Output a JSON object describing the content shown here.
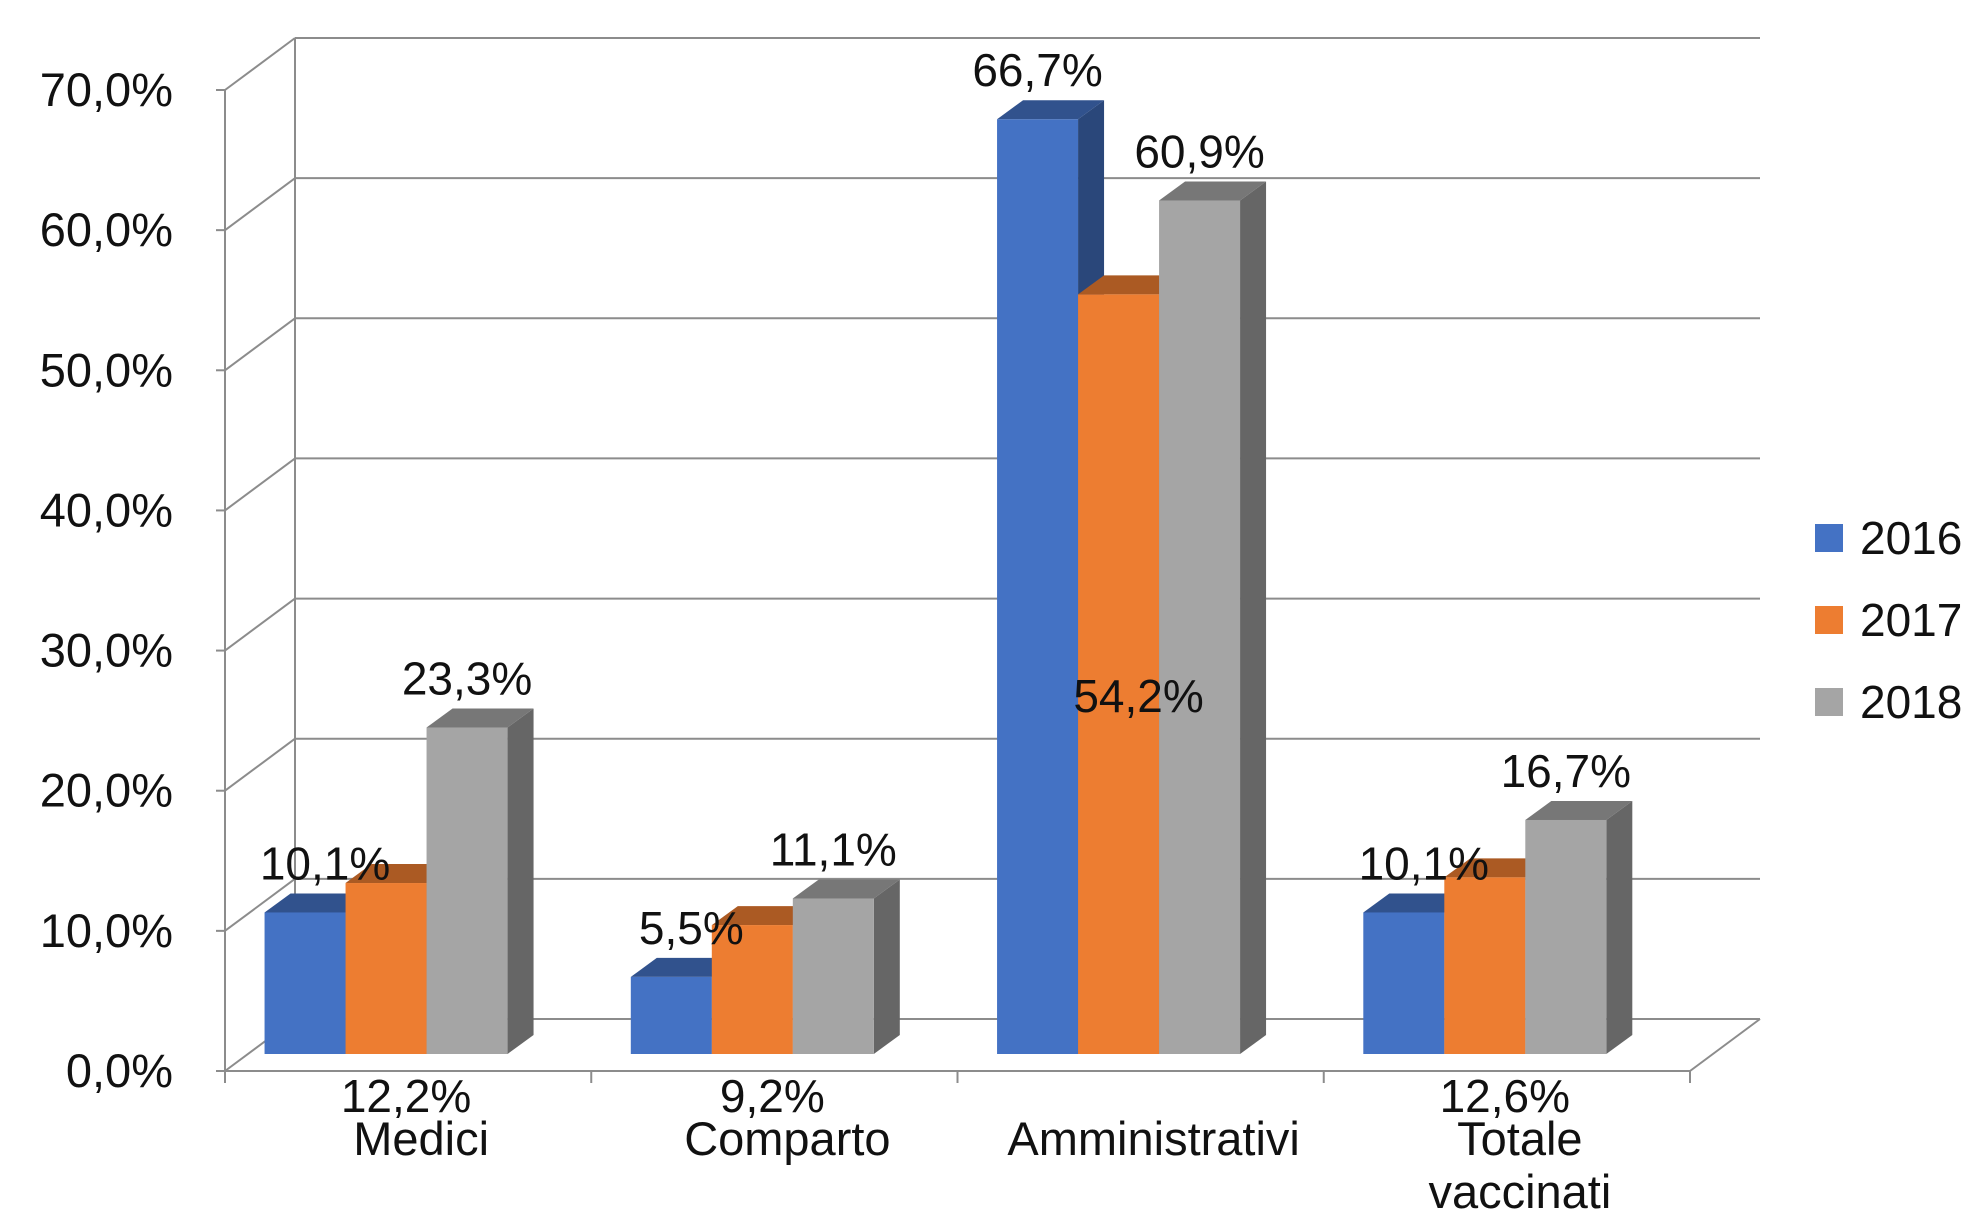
{
  "chart_data": {
    "type": "bar",
    "style": "3d-clustered-column",
    "categories": [
      [
        "Medici"
      ],
      [
        "Comparto"
      ],
      [
        "Amministrativi"
      ],
      [
        "Totale",
        "vaccinati"
      ]
    ],
    "series": [
      {
        "name": "2016",
        "color": "#4472C4",
        "values": [
          10.1,
          5.5,
          66.7,
          10.1
        ]
      },
      {
        "name": "2017",
        "color": "#ED7D31",
        "values": [
          12.2,
          9.2,
          54.2,
          12.6
        ]
      },
      {
        "name": "2018",
        "color": "#A5A5A5",
        "values": [
          23.3,
          11.1,
          60.9,
          16.7
        ]
      }
    ],
    "data_labels": [
      [
        "10,1%",
        "5,5%",
        "66,7%",
        "10,1%"
      ],
      [
        "12,2%",
        "9,2%",
        "54,2%",
        "12,6%"
      ],
      [
        "23,3%",
        "11,1%",
        "60,9%",
        "16,7%"
      ]
    ],
    "yticks": [
      "0,0%",
      "10,0%",
      "20,0%",
      "30,0%",
      "40,0%",
      "50,0%",
      "60,0%",
      "70,0%"
    ],
    "ylim": [
      0,
      70
    ],
    "grid": true,
    "legend": "right"
  }
}
